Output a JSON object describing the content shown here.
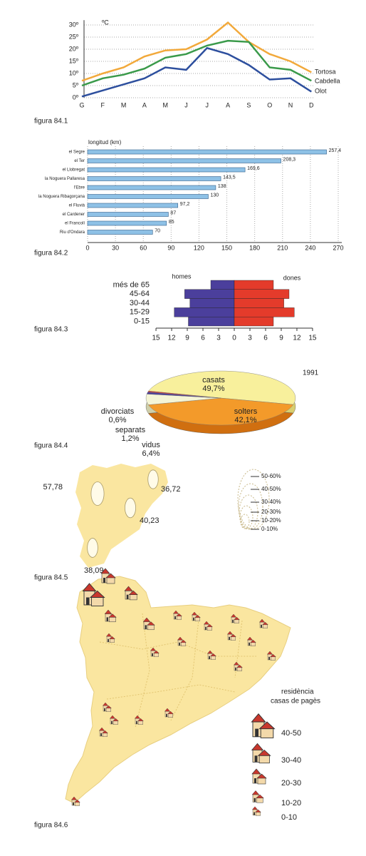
{
  "chart_data": [
    {
      "type": "line",
      "caption": "figura 84.1",
      "y_unit": "ºC",
      "categories": [
        "G",
        "F",
        "M",
        "A",
        "M",
        "J",
        "J",
        "A",
        "S",
        "O",
        "N",
        "D"
      ],
      "ylim": [
        0,
        32
      ],
      "yticks": [
        {
          "value": 0,
          "label": "0º"
        },
        {
          "value": 5,
          "label": "5º"
        },
        {
          "value": 10,
          "label": "10º"
        },
        {
          "value": 15,
          "label": "15º"
        },
        {
          "value": 20,
          "label": "20º"
        },
        {
          "value": 25,
          "label": "25º"
        },
        {
          "value": 30,
          "label": "30º"
        }
      ],
      "grid": true,
      "series": [
        {
          "name": "Tortosa",
          "color": "#f2a93b",
          "values": [
            7,
            10,
            12.5,
            17,
            19.5,
            20,
            24,
            31,
            23,
            18,
            15,
            10.5
          ]
        },
        {
          "name": "Cabdella",
          "color": "#3a9a4a",
          "values": [
            5,
            8,
            9.5,
            12,
            16.5,
            18,
            21.5,
            23.5,
            23,
            12.5,
            11.5,
            7
          ]
        },
        {
          "name": "Olot",
          "color": "#2d4f9e",
          "values": [
            0.5,
            3,
            5.5,
            8,
            12.5,
            11.5,
            20.5,
            18,
            13.5,
            7.5,
            8,
            2.5
          ]
        }
      ]
    },
    {
      "type": "hbar",
      "caption": "figura 84.2",
      "xlabel": "longitud (km)",
      "categories": [
        "el Segre",
        "el Ter",
        "el Llobregat",
        "la Noguera Pallaresa",
        "l'Ebre",
        "la Noguera Ribagorçana",
        "el Fluvià",
        "el Cardener",
        "el Francolí",
        "Riu d'Ondara"
      ],
      "values": [
        257.4,
        208.3,
        169.6,
        143.5,
        138,
        130,
        97.2,
        87,
        85,
        70
      ],
      "value_labels": [
        "257,4",
        "208,3",
        "169,6",
        "143,5",
        "138",
        "130",
        "97,2",
        "87",
        "85",
        "70"
      ],
      "color": "#8ec1e6",
      "xlim": [
        0,
        270
      ],
      "xticks": [
        0,
        30,
        60,
        90,
        120,
        150,
        180,
        210,
        240,
        270
      ],
      "grid": true
    },
    {
      "type": "pyramid",
      "caption": "figura 84.3",
      "categories": [
        "més de 65",
        "45-64",
        "30-44",
        "15-29",
        "0-15"
      ],
      "series": [
        {
          "name": "homes",
          "color": "#4b3f9c",
          "values": [
            4.5,
            9.5,
            8.5,
            11.5,
            8.8
          ]
        },
        {
          "name": "dones",
          "color": "#e43b2b",
          "values": [
            7.5,
            10.5,
            9.5,
            11.5,
            7.5
          ]
        }
      ],
      "xlim": [
        -15,
        15
      ],
      "xticks": [
        {
          "value": -15,
          "label": "15"
        },
        {
          "value": -12,
          "label": "12"
        },
        {
          "value": -9,
          "label": "9"
        },
        {
          "value": -6,
          "label": "6"
        },
        {
          "value": -3,
          "label": "3"
        },
        0,
        3,
        6,
        9,
        12,
        15
      ]
    },
    {
      "type": "pie",
      "caption": "figura 84.4",
      "title": "1991",
      "categories": [
        "casats",
        "solters",
        "vidus",
        "separats",
        "divorciats"
      ],
      "values": [
        49.7,
        42.1,
        6.4,
        1.2,
        0.6
      ],
      "value_labels": [
        "49,7%",
        "42,1%",
        "6,4%",
        "1,2%",
        "0,6%"
      ],
      "colors": [
        "#f8f09c",
        "#f39a2a",
        "#f5f5d6",
        "#4b3f9c",
        "#d9342b"
      ]
    },
    {
      "type": "bubble",
      "caption": "figura 84.5",
      "values": [
        57.78,
        36.72,
        40.23,
        38.09
      ],
      "value_labels": [
        "57,78",
        "36,72",
        "40,23",
        "38,09"
      ],
      "color": "#fffbe8",
      "legend": [
        "50-60%",
        "40-50%",
        "30-40%",
        "20-30%",
        "10-20%",
        "0-10%"
      ]
    }
  ],
  "map": {
    "caption": "figura 84.6",
    "legend_title": [
      "residència",
      "casas de pagès"
    ],
    "legend": [
      "40-50",
      "30-40",
      "20-30",
      "10-20",
      "0-10"
    ]
  }
}
